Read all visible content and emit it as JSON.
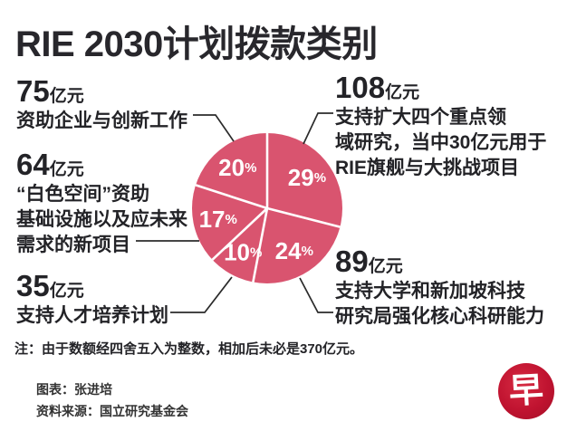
{
  "title": "RIE 2030计划拨款类别",
  "chart_data": {
    "type": "pie",
    "title": "RIE 2030计划拨款类别",
    "unit": "亿元",
    "total_reference": "370亿元",
    "start_angle_deg": 0,
    "direction": "clockwise",
    "slices": [
      {
        "percent": 29,
        "label": "29%",
        "amount": 108,
        "description": "支持扩大四个重点领域研究，当中30亿元用于RIE旗舰与大挑战项目"
      },
      {
        "percent": 24,
        "label": "24%",
        "amount": 89,
        "description": "支持大学和新加坡科技研究局强化核心科研能力"
      },
      {
        "percent": 10,
        "label": "10%",
        "amount": 35,
        "description": "支持人才培养计划"
      },
      {
        "percent": 17,
        "label": "17%",
        "amount": 64,
        "description": "“白色空间”资助基础设施以及应未来需求的新项目"
      },
      {
        "percent": 20,
        "label": "20%",
        "amount": 75,
        "description": "资助企业与创新工作"
      }
    ],
    "colors": {
      "slice_fill": "#d9546f",
      "divider": "#ffffff",
      "label": "#ffffff"
    },
    "legend_position": "callouts-around-pie"
  },
  "labels": {
    "left75": {
      "amount": "75",
      "unit": "亿元",
      "lines": [
        "资助企业与创新工作"
      ]
    },
    "left64": {
      "amount": "64",
      "unit": "亿元",
      "lines": [
        "“白色空间”资助",
        "基础设施以及应未来",
        "需求的新项目"
      ]
    },
    "left35": {
      "amount": "35",
      "unit": "亿元",
      "lines": [
        "支持人才培养计划"
      ]
    },
    "right108": {
      "amount": "108",
      "unit": "亿元",
      "lines": [
        "支持扩大四个重点领",
        "域研究，当中30亿元用于",
        "RIE旗舰与大挑战项目"
      ]
    },
    "right89": {
      "amount": "89",
      "unit": "亿元",
      "lines": [
        "支持大学和新加坡科技",
        "研究局强化核心科研能力"
      ]
    }
  },
  "note": "注：由于数额经四舍五入为整数，相加后未必是370亿元。",
  "credits": {
    "chart_by": "图表：张进培",
    "source": "资料来源：国立研究基金会"
  },
  "logo": {
    "character": "早",
    "bg_color": "#c01330"
  }
}
